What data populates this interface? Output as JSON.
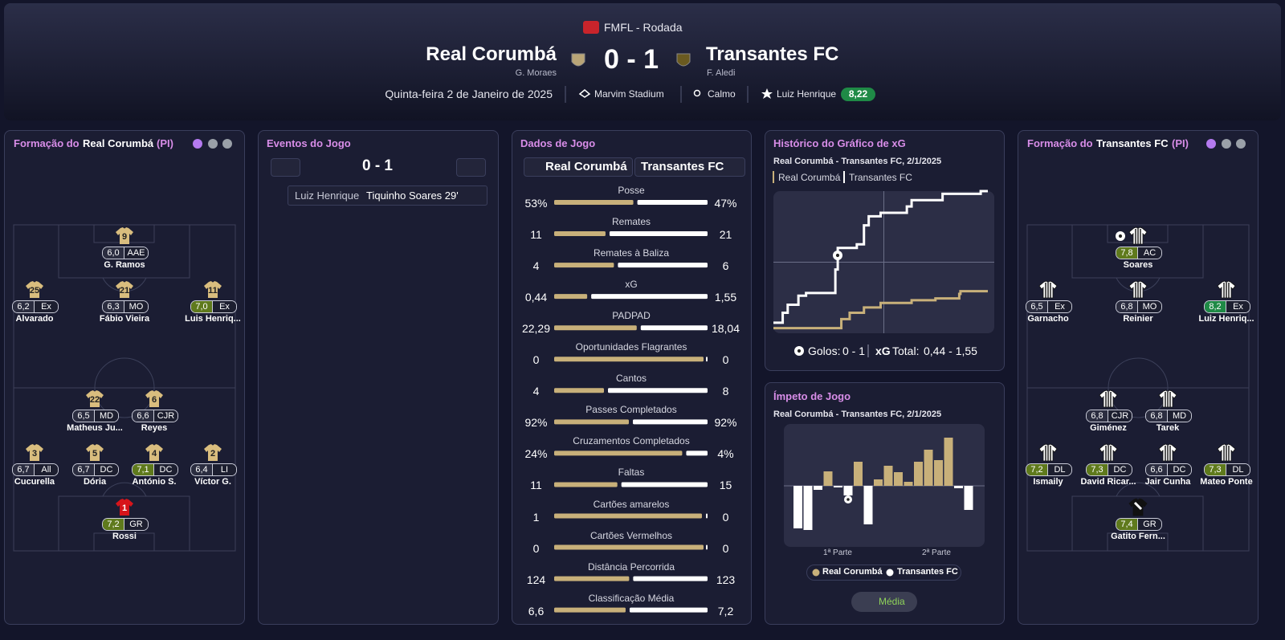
{
  "header": {
    "competition": "FMFL - Rodada",
    "home_team": "Real Corumbá",
    "home_scorer": "G. Moraes",
    "score": "0 - 1",
    "away_team": "Transantes FC",
    "away_scorer": "F. Aledi",
    "date": "Quinta-feira 2 de Janeiro de 2025",
    "stadium": "Marvim Stadium",
    "weather": "Calmo",
    "player_of_match": "Luiz Henrique",
    "player_of_match_rating": "8,22"
  },
  "home_lineup": {
    "title_prefix": "Formação do",
    "team": "Real Corumbá",
    "mode": "(PI)",
    "players": [
      {
        "number": 9,
        "name": "G. Ramos",
        "rating": "6,0",
        "position": "AAE"
      },
      {
        "number": 25,
        "name": "Alvarado",
        "rating": "6,2",
        "position": "Ex"
      },
      {
        "number": 21,
        "name": "Fábio Vieira",
        "rating": "6,3",
        "position": "MO"
      },
      {
        "number": 11,
        "name": "Luis Henriq...",
        "rating": "7,0",
        "position": "Ex"
      },
      {
        "number": 22,
        "name": "Matheus Ju...",
        "rating": "6,5",
        "position": "MD"
      },
      {
        "number": 6,
        "name": "Reyes",
        "rating": "6,6",
        "position": "CJR"
      },
      {
        "number": 3,
        "name": "Cucurella",
        "rating": "6,7",
        "position": "All"
      },
      {
        "number": 5,
        "name": "Dória",
        "rating": "6,7",
        "position": "DC"
      },
      {
        "number": 4,
        "name": "António S.",
        "rating": "7,1",
        "position": "DC"
      },
      {
        "number": 2,
        "name": "Víctor G.",
        "rating": "6,4",
        "position": "LI"
      },
      {
        "number": 1,
        "name": "Rossi",
        "rating": "7,2",
        "position": "GR"
      }
    ]
  },
  "events": {
    "title": "Eventos do Jogo",
    "score": "0 - 1",
    "items": [
      {
        "assist": "Luiz Henrique",
        "scorer": "Tiquinho Soares 29'"
      }
    ]
  },
  "stats": {
    "title": "Dados de Jogo",
    "home_team": "Real Corumbá",
    "away_team": "Transantes FC",
    "home_color": "#c8b07a",
    "away_color": "#ffffff",
    "rows": [
      {
        "label": "Posse",
        "home": 53,
        "away": 47,
        "home_label": "53%",
        "away_label": "47%"
      },
      {
        "label": "Remates",
        "home": 11,
        "away": 21
      },
      {
        "label": "Remates à Baliza",
        "home": 4,
        "away": 6
      },
      {
        "label": "xG",
        "home": 0.44,
        "away": 1.55,
        "home_label": "0,44",
        "away_label": "1,55"
      },
      {
        "label": "PADPAD",
        "home": 22.29,
        "away": 18.04,
        "home_label": "22,29",
        "away_label": "18,04"
      },
      {
        "label": "Oportunidades Flagrantes",
        "home": 0,
        "away": 0
      },
      {
        "label": "Cantos",
        "home": 4,
        "away": 8
      },
      {
        "label": "Passes Completados",
        "home": 92,
        "away": 92,
        "home_label": "92%",
        "away_label": "92%"
      },
      {
        "label": "Cruzamentos Completados",
        "home": 24,
        "away": 4,
        "home_label": "24%",
        "away_label": "4%"
      },
      {
        "label": "Faltas",
        "home": 11,
        "away": 15
      },
      {
        "label": "Cartões amarelos",
        "home": 1,
        "away": 0
      },
      {
        "label": "Cartões Vermelhos",
        "home": 0,
        "away": 0
      },
      {
        "label": "Distância Percorrida",
        "home": 124,
        "away": 123
      },
      {
        "label": "Classificação Média",
        "home": 6.6,
        "away": 7.2,
        "home_label": "6,6",
        "away_label": "7,2"
      }
    ]
  },
  "xg_chart": {
    "title": "Histórico do Gráfico de xG",
    "subtitle": "Real Corumbá - Transantes FC, 2/1/2025",
    "series": [
      {
        "name": "Real Corumbá",
        "color": "#c8b07a",
        "x": [
          0,
          28.5,
          32,
          38,
          45,
          58,
          68,
          78,
          78.5,
          90
        ],
        "values": [
          0.03,
          0.13,
          0.2,
          0.26,
          0.31,
          0.34,
          0.36,
          0.41,
          0.44,
          0.44
        ]
      },
      {
        "name": "Transantes FC",
        "color": "#ffffff",
        "x": [
          0,
          3.9,
          6,
          10.5,
          13.7,
          26,
          27,
          35,
          38,
          40,
          45,
          56,
          58,
          71,
          87,
          90
        ],
        "values": [
          0.09,
          0.2,
          0.29,
          0.39,
          0.42,
          0.68,
          0.92,
          0.96,
          1.17,
          1.27,
          1.31,
          1.38,
          1.45,
          1.52,
          1.55,
          1.55
        ]
      }
    ],
    "goals_label": "Golos:",
    "goals": "0 - 1",
    "xg_label": "xG",
    "total_label": "Total:",
    "total": "0,44 - 1,55"
  },
  "momentum": {
    "title": "Ímpeto de Jogo",
    "subtitle": "Real Corumbá - Transantes FC, 2/1/2025",
    "home_color": "#c8b07a",
    "away_color": "#ffffff",
    "values": [
      -53,
      -55,
      -5,
      18,
      -2,
      -12,
      30,
      -48,
      8,
      25,
      17,
      5,
      30,
      45,
      32,
      60,
      -3,
      -30
    ],
    "halves": [
      "1ª Parte",
      "2ª Parte"
    ],
    "legend": [
      "Real Corumbá",
      "Transantes FC"
    ],
    "button": "Média"
  },
  "away_lineup": {
    "title_prefix": "Formação do",
    "team": "Transantes FC",
    "mode": "(PI)",
    "players": [
      {
        "name": "Soares",
        "rating": "7,8",
        "position": "AC"
      },
      {
        "name": "Garnacho",
        "rating": "6,5",
        "position": "Ex"
      },
      {
        "name": "Reinier",
        "rating": "6,8",
        "position": "MO"
      },
      {
        "name": "Luiz Henriq...",
        "rating": "8,2",
        "position": "Ex"
      },
      {
        "name": "Giménez",
        "rating": "6,8",
        "position": "CJR"
      },
      {
        "name": "Tarek",
        "rating": "6,8",
        "position": "MD"
      },
      {
        "name": "Ismaily",
        "rating": "7,2",
        "position": "DL"
      },
      {
        "name": "David Ricar...",
        "rating": "7,3",
        "position": "DC"
      },
      {
        "name": "Jair Cunha",
        "rating": "6,6",
        "position": "DC"
      },
      {
        "name": "Mateo Ponte",
        "rating": "7,3",
        "position": "DL"
      },
      {
        "name": "Gatito Fern...",
        "rating": "7,4",
        "position": "GR"
      }
    ]
  }
}
